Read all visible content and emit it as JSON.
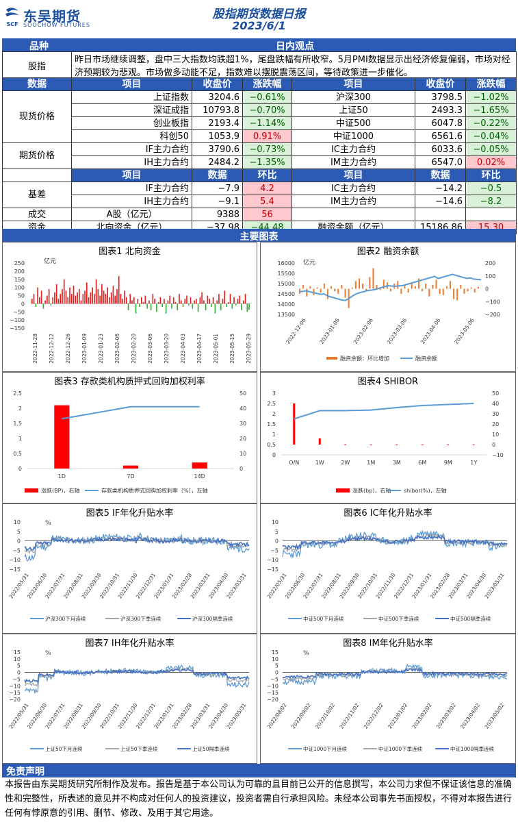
{
  "header": {
    "logo_cn": "东吴期货",
    "logo_en": "SOOCHOW FUTURES",
    "logo_mark": "SCF",
    "title": "股指期货数据日报",
    "date": "2023/6/1"
  },
  "view": {
    "col1": "品种",
    "col2": "日内观点",
    "label": "股指",
    "text": "昨日市场继续调整，盘中三大指数均跌超1%，尾盘跌幅有所收窄。5月PMI数据显示出经济修复偏弱，市场对经济预期较为悲观。市场做多动能不足，指数难以摆脱震荡区间，等待政策进一步催化。"
  },
  "price_header": {
    "c0": "数据",
    "c1": "项目",
    "c2": "收盘价",
    "c3": "涨跌幅",
    "c4": "项目",
    "c5": "收盘价",
    "c6": "涨跌幅"
  },
  "spot": {
    "label": "现货价格",
    "rows": [
      {
        "n1": "上证指数",
        "v1": "3204.6",
        "p1": "-0.61%",
        "d1": "down",
        "n2": "沪深300",
        "v2": "3798.5",
        "p2": "-1.02%",
        "d2": "down"
      },
      {
        "n1": "深证成指",
        "v1": "10793.8",
        "p1": "-0.70%",
        "d1": "down",
        "n2": "上证50",
        "v2": "2493.3",
        "p2": "-1.65%",
        "d2": "down"
      },
      {
        "n1": "创业板指",
        "v1": "2193.4",
        "p1": "-1.14%",
        "d1": "down",
        "n2": "中证500",
        "v2": "6047.8",
        "p2": "-0.22%",
        "d2": "down"
      },
      {
        "n1": "科创50",
        "v1": "1053.9",
        "p1": "0.91%",
        "d1": "up",
        "n2": "中证1000",
        "v2": "6561.6",
        "p2": "-0.04%",
        "d2": "down"
      }
    ]
  },
  "futures": {
    "label": "期货价格",
    "rows": [
      {
        "n1": "IF主力合约",
        "v1": "3790.6",
        "p1": "-0.73%",
        "d1": "down",
        "n2": "IC主力合约",
        "v2": "6033.6",
        "p2": "-0.05%",
        "d2": "down"
      },
      {
        "n1": "IH主力合约",
        "v1": "2484.2",
        "p1": "-1.35%",
        "d1": "down",
        "n2": "IM主力合约",
        "v2": "6547.0",
        "p2": "0.02%",
        "d2": "up"
      }
    ]
  },
  "basis_header": {
    "c1": "项目",
    "c2": "数据",
    "c3": "环比",
    "c4": "项目",
    "c5": "数据",
    "c6": "环比"
  },
  "basis": {
    "label": "基差",
    "rows": [
      {
        "n1": "IF主力合约",
        "v1": "-7.9",
        "p1": "4.2",
        "d1": "up",
        "n2": "IC主力合约",
        "v2": "-14.2",
        "p2": "-0.5",
        "d2": "down"
      },
      {
        "n1": "IH主力合约",
        "v1": "-9.1",
        "p1": "5.4",
        "d1": "up",
        "n2": "IM主力合约",
        "v2": "-14.6",
        "p2": "-8.2",
        "d2": "down"
      }
    ]
  },
  "volume": {
    "label": "成交",
    "n1": "A股（亿元）",
    "v1": "9388",
    "p1": "56"
  },
  "funds": {
    "label": "资金",
    "n1": "北向资金（亿元）",
    "v1": "-37.98",
    "p1": "-44.48",
    "n2": "融资余额（亿元）",
    "v2": "15186.86",
    "p2": "15.30"
  },
  "charts_title": "主要图表",
  "chart_data": [
    {
      "type": "bar",
      "title": "图表1  北向资金",
      "ylabel": "亿元",
      "ylim": [
        -150,
        250
      ],
      "yticks": [
        250,
        200,
        150,
        100,
        50,
        0,
        -50,
        -100,
        -150
      ],
      "xticks": [
        "2022-11-28",
        "2022-12-12",
        "2022-12-26",
        "2023-01-09",
        "2023-01-23",
        "2023-02-06",
        "2023-02-20",
        "2023-03-06",
        "2023-03-20",
        "2023-04-03",
        "2023-04-17",
        "2023-05-01",
        "2023-05-15",
        "2023-05-29"
      ],
      "values": [
        30,
        60,
        -20,
        100,
        40,
        80,
        -30,
        20,
        50,
        90,
        -10,
        40,
        70,
        120,
        30,
        60,
        90,
        150,
        80,
        40,
        100,
        60,
        110,
        50,
        70,
        90,
        20,
        60,
        80,
        130,
        40,
        70,
        100,
        60,
        150,
        90,
        50,
        120,
        80,
        60,
        100,
        40,
        70,
        110,
        50,
        90,
        170,
        60,
        30,
        80,
        40,
        -40,
        60,
        20,
        40,
        -60,
        30,
        -20,
        40,
        10,
        50,
        -30,
        20,
        -40,
        60,
        30,
        -50,
        10,
        40,
        -20,
        30,
        -60,
        20,
        50,
        -30,
        40,
        10,
        -40,
        60,
        20,
        -20,
        30,
        50,
        -10,
        40,
        -30,
        20,
        30,
        -50,
        40,
        70,
        20,
        -40,
        50,
        30,
        -20,
        40,
        -60,
        20,
        60,
        -40,
        30,
        80,
        -20,
        10,
        60,
        -30,
        40,
        -10,
        30,
        50,
        -40,
        20,
        60,
        -50,
        -38
      ]
    },
    {
      "type": "bar+line",
      "title": "图表2  融资余额",
      "ylabel": "亿元",
      "ylim_left": [
        13500,
        16000
      ],
      "ylim_right": [
        -200,
        200
      ],
      "yticks_left": [
        16000,
        15500,
        15000,
        14500,
        14000,
        13500
      ],
      "yticks_right": [
        200,
        100,
        0,
        -100,
        -200
      ],
      "xticks": [
        "2022-12-06",
        "2023-01-06",
        "2023-02-06",
        "2023-03-06",
        "2023-04-06",
        "2023-05-06"
      ],
      "series": [
        {
          "name": "融资余额：环比增加",
          "color": "#ed7d31"
        },
        {
          "name": "融资余额",
          "color": "#5b9bd5"
        }
      ],
      "line": [
        14600,
        14620,
        14650,
        14600,
        14560,
        14520,
        14480,
        14500,
        14400,
        14350,
        14300,
        14250,
        14200,
        14180,
        14280,
        14400,
        14500,
        14560,
        14600,
        14650,
        14680,
        14700,
        14750,
        14800,
        14850,
        14900,
        14880,
        14870,
        14890,
        14900,
        14950,
        15000,
        15050,
        15100,
        15150,
        15200,
        15250,
        15300,
        15350,
        15250,
        15300,
        15350,
        15400,
        15450,
        15400,
        15350,
        15300,
        15250,
        15280,
        15220,
        15200,
        15187
      ],
      "bars": [
        -40,
        30,
        -60,
        20,
        -50,
        10,
        -30,
        40,
        -80,
        20,
        -20,
        -40,
        30,
        -70,
        -150,
        10,
        60,
        80,
        40,
        -20,
        90,
        160,
        30,
        -10,
        70,
        50,
        -20,
        40,
        60,
        -40,
        30,
        -30,
        50,
        20,
        80,
        -20,
        40,
        -60,
        30,
        70,
        -40,
        -50,
        20,
        60,
        -80,
        -90,
        30,
        -40,
        -20,
        10,
        -30,
        15
      ]
    },
    {
      "type": "bar+line",
      "title": "图表3  存款类机构质押式回购加权利率",
      "ylim_left": [
        0,
        2.5
      ],
      "ylim_right": [
        0,
        50
      ],
      "yticks_left": [
        2.5,
        2.0,
        1.5,
        1.0,
        0.5,
        0.0
      ],
      "yticks_right": [
        50,
        40,
        30,
        20,
        10,
        0
      ],
      "categories": [
        "1D",
        "7D",
        "14D"
      ],
      "bars": [
        2.1,
        0.1,
        0.2
      ],
      "line": [
        33,
        41,
        41
      ],
      "series": [
        {
          "name": "涨跌(BP)，右轴",
          "color": "#ff0000"
        },
        {
          "name": "存款类机构质押式回购加权利率（%），左轴",
          "color": "#5b9bd5"
        }
      ]
    },
    {
      "type": "bar+line",
      "title": "图表4  SHIBOR",
      "ylim_left": [
        0,
        3.0
      ],
      "ylim_right": [
        -10,
        50
      ],
      "yticks_left": [
        3.0,
        2.5,
        2.0,
        1.5,
        1.0,
        0.5,
        0.0
      ],
      "yticks_right": [
        50,
        40,
        30,
        20,
        10,
        0,
        -10
      ],
      "categories": [
        "O/N",
        "1W",
        "2W",
        "1M",
        "3M",
        "6M",
        "9M",
        "1Y"
      ],
      "bars": [
        40,
        6,
        0.3,
        -0.2,
        0.1,
        0.1,
        -0.4,
        0.1
      ],
      "line": [
        1.75,
        2.15,
        2.15,
        2.18,
        2.3,
        2.4,
        2.45,
        2.5
      ],
      "series": [
        {
          "name": "涨跌(bp)，右轴",
          "color": "#ff0000"
        },
        {
          "name": "shibor(%)，左轴",
          "color": "#5b9bd5"
        }
      ]
    },
    {
      "type": "line",
      "title": "图表5  IF年化升贴水率",
      "ylabel": "%",
      "ylim": [
        -15,
        10
      ],
      "yticks": [
        10,
        5,
        0,
        -5,
        -10,
        -15
      ],
      "xticks": [
        "2022/05/31",
        "2022/06/30",
        "2022/07/31",
        "2022/08/31",
        "2022/09/30",
        "2022/10/31",
        "2022/11/30",
        "2022/12/31",
        "2023/01/31",
        "2023/02/28",
        "2023/03/31",
        "2023/04/30",
        "2023/05/31"
      ],
      "series": [
        {
          "name": "沪深300下月连续",
          "color": "#5b9bd5"
        },
        {
          "name": "沪深300下季连续",
          "color": "#a5a5a5"
        },
        {
          "name": "沪深300隔季连续",
          "color": "#4472c4"
        }
      ]
    },
    {
      "type": "line",
      "title": "图表6  IC年化升贴水率",
      "ylim": [
        -15,
        10
      ],
      "yticks": [
        10,
        5,
        0,
        -5,
        -10,
        -15
      ],
      "xticks": [
        "2022/05/31",
        "2022/06/30",
        "2022/07/31",
        "2022/08/31",
        "2022/09/30",
        "2022/10/31",
        "2022/11/30",
        "2022/12/31",
        "2023/01/31",
        "2023/02/28",
        "2023/03/31",
        "2023/04/30",
        "2023/05/31"
      ],
      "series": [
        {
          "name": "中证500下月连续",
          "color": "#5b9bd5"
        },
        {
          "name": "中证500下季连续",
          "color": "#a5a5a5"
        },
        {
          "name": "中证500隔季连续",
          "color": "#4472c4"
        }
      ]
    },
    {
      "type": "line",
      "title": "图表7  IH年化升贴水率",
      "ylabel": "%",
      "ylim": [
        -20,
        15
      ],
      "yticks": [
        15,
        10,
        5,
        0,
        -5,
        -10,
        -15,
        -20
      ],
      "xticks": [
        "2022/05/31",
        "2022/06/30",
        "2022/07/31",
        "2022/08/31",
        "2022/09/30",
        "2022/10/31",
        "2022/11/30",
        "2022/12/31",
        "2023/01/31",
        "2023/02/28",
        "2023/03/31",
        "2023/04/30",
        "2023/05/31"
      ],
      "series": [
        {
          "name": "上证50下月连续",
          "color": "#5b9bd5"
        },
        {
          "name": "上证50下季连续",
          "color": "#a5a5a5"
        },
        {
          "name": "上证50隔季连续",
          "color": "#4472c4"
        }
      ]
    },
    {
      "type": "line",
      "title": "图表8  IM年化升贴水率",
      "ylabel": "%",
      "ylim": [
        -20,
        15
      ],
      "yticks": [
        15,
        10,
        5,
        0,
        -5,
        -10,
        -15,
        -20
      ],
      "xticks": [
        "2022/08/02",
        "2022/09/02",
        "2022/10/02",
        "2022/11/02",
        "2022/12/02",
        "2023/01/02",
        "2023/02/02",
        "2023/03/02",
        "2023/04/02",
        "2023/05/02"
      ],
      "series": [
        {
          "name": "中证1000下月连续",
          "color": "#5b9bd5"
        },
        {
          "name": "中证1000下季连续",
          "color": "#a5a5a5"
        },
        {
          "name": "中证1000隔季连续",
          "color": "#4472c4"
        }
      ]
    }
  ],
  "disclaimer": {
    "title": "免责声明",
    "text": "本报告由东吴期货研究所制作及发布。报告是基于本公司认为可靠的且目前已公开的信息撰写，本公司力求但不保证该信息的准确性和完整性，所表述的意见并不构成对任何人的投资建议，投资者需自行承担风险。未经本公司事先书面授权，不得对本报告进行任何有悖原意的引用、删节、修改、及用于其它用途。"
  }
}
